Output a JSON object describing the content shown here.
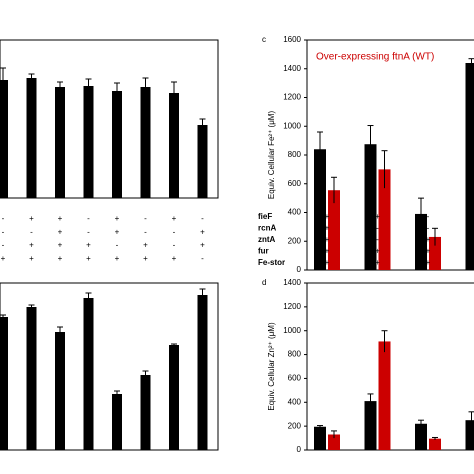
{
  "chart_data": [
    {
      "type": "bar",
      "categories": [
        null,
        null,
        null,
        null,
        null,
        null,
        null,
        null
      ],
      "values": [
        118,
        120,
        111,
        112,
        107,
        111,
        105,
        73
      ],
      "errors": [
        12,
        4,
        5,
        7,
        8,
        9,
        11,
        6
      ],
      "color": "#000000",
      "ylim": [
        0,
        158
      ],
      "table": {
        "rows": [
          {
            "marks": [
              "-",
              "+",
              "+",
              "-",
              "+",
              "-",
              "+",
              "-"
            ]
          },
          {
            "marks": [
              "-",
              "-",
              "+",
              "-",
              "+",
              "-",
              "-",
              "+"
            ]
          },
          {
            "marks": [
              "-",
              "+",
              "+",
              "+",
              "-",
              "+",
              "-",
              "+"
            ]
          },
          {
            "marks": [
              "+",
              "+",
              "+",
              "+",
              "+",
              "+",
              "+",
              "-"
            ]
          }
        ]
      }
    },
    {
      "type": "bar",
      "categories": [
        null,
        null,
        null,
        null,
        null,
        null,
        null,
        null
      ],
      "values": [
        133,
        143,
        118,
        152,
        56,
        75,
        105,
        155
      ],
      "errors": [
        2,
        2,
        5,
        5,
        3,
        4,
        1,
        6
      ],
      "color": "#000000",
      "ylim": [
        0,
        167
      ]
    },
    {
      "type": "grouped_bar",
      "label": "c",
      "title": "Over-expressing  ftnA (WT)",
      "title_color": "#cc0000",
      "y_label": "Equiv. Cellular Fe²⁺ (μM)",
      "categories": [
        null,
        null,
        null,
        null
      ],
      "series": [
        {
          "color": "#000000",
          "values": [
            840,
            875,
            390,
            1440
          ],
          "errors": [
            120,
            130,
            110,
            30
          ]
        },
        {
          "color": "#cc0000",
          "values": [
            555,
            700,
            230,
            null
          ],
          "errors": [
            90,
            130,
            60,
            null
          ]
        }
      ],
      "ylim": [
        0,
        1600
      ],
      "yticks": [
        0,
        200,
        400,
        600,
        800,
        1000,
        1200,
        1400,
        1600
      ],
      "table": {
        "rows": [
          {
            "name": "fieF",
            "marks": [
              "+",
              "+",
              "-"
            ]
          },
          {
            "name": "rcnA",
            "marks": [
              "+",
              "-",
              "-"
            ]
          },
          {
            "name": "zntA",
            "marks": [
              "+",
              "-",
              "+"
            ]
          },
          {
            "name": "fur",
            "marks": [
              "+",
              "+",
              "+"
            ]
          },
          {
            "name": "Fe-stor",
            "marks": [
              "+",
              "+",
              "+"
            ]
          }
        ]
      }
    },
    {
      "type": "grouped_bar",
      "label": "d",
      "y_label": "Equiv. Cellular Zn²⁺ (μM)",
      "categories": [
        null,
        null,
        null,
        null
      ],
      "series": [
        {
          "color": "#000000",
          "values": [
            195,
            410,
            220,
            250
          ],
          "errors": [
            10,
            60,
            30,
            70
          ]
        },
        {
          "color": "#cc0000",
          "values": [
            130,
            910,
            95,
            null
          ],
          "errors": [
            30,
            90,
            10,
            null
          ]
        }
      ],
      "ylim": [
        0,
        1400
      ],
      "yticks": [
        0,
        200,
        400,
        600,
        800,
        1000,
        1200,
        1400
      ]
    }
  ]
}
